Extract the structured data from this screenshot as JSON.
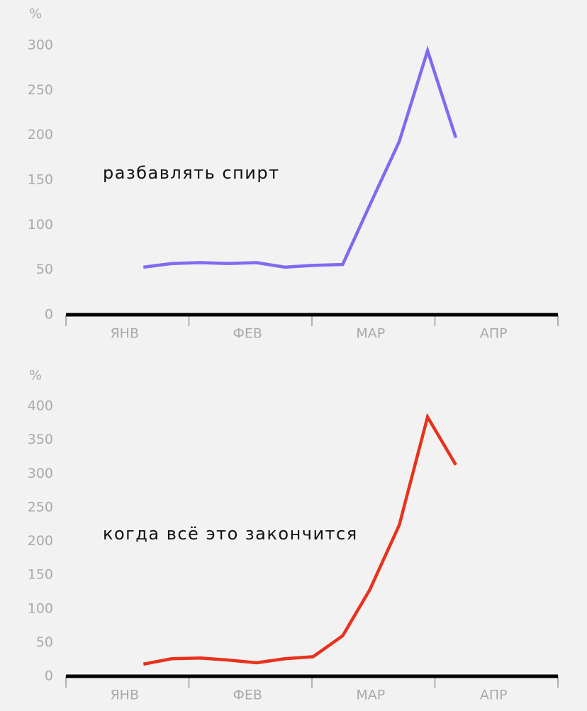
{
  "chart_data": [
    {
      "type": "line",
      "y_label": "%",
      "annotation": "разбавлять спирт",
      "color": "#7d6cf0",
      "categories": [
        "ЯНВ",
        "ФЕВ",
        "МАР",
        "АПР"
      ],
      "x": [
        0.63,
        0.86,
        1.09,
        1.32,
        1.55,
        1.78,
        2.01,
        2.25,
        2.47,
        2.71,
        2.94,
        3.17
      ],
      "values": [
        53,
        57,
        58,
        57,
        58,
        53,
        55,
        56,
        122,
        193,
        294,
        197
      ],
      "xlim": [
        0,
        4
      ],
      "xticks": [
        0,
        1,
        2,
        3,
        4
      ],
      "ylim": [
        0,
        300
      ],
      "yticks": [
        0,
        50,
        100,
        150,
        200,
        250,
        300
      ]
    },
    {
      "type": "line",
      "y_label": "%",
      "annotation": "когда всё это закончится",
      "color": "#e8321e",
      "categories": [
        "ЯНВ",
        "ФЕВ",
        "МАР",
        "АПР"
      ],
      "x": [
        0.63,
        0.86,
        1.09,
        1.32,
        1.55,
        1.78,
        2.01,
        2.25,
        2.47,
        2.71,
        2.94,
        3.17
      ],
      "values": [
        18,
        26,
        27,
        24,
        20,
        26,
        29,
        60,
        128,
        224,
        384,
        313
      ],
      "xlim": [
        0,
        4
      ],
      "xticks": [
        0,
        1,
        2,
        3,
        4
      ],
      "ylim": [
        0,
        400
      ],
      "yticks": [
        0,
        50,
        100,
        150,
        200,
        250,
        300,
        350,
        400
      ]
    }
  ]
}
